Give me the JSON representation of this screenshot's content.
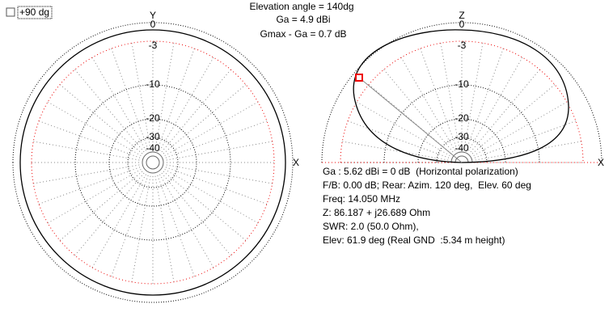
{
  "checkbox": {
    "label": "+90 dg"
  },
  "header": {
    "lines": [
      "Elevation angle = 140dg",
      "Ga = 4.9 dBi",
      "Gmax - Ga = 0.7 dB"
    ]
  },
  "left_plot": {
    "axis_labels": {
      "vertical": "Y",
      "horizontal": "X"
    },
    "ring_labels": [
      0,
      -3,
      -10,
      -20,
      -30,
      -40
    ]
  },
  "right_plot": {
    "axis_labels": {
      "vertical": "Z",
      "horizontal": "X"
    },
    "ring_labels": [
      0,
      -3,
      -10,
      -20,
      -30,
      -40
    ]
  },
  "info": {
    "lines": [
      "Ga : 5.62 dBi = 0 dB  (Horizontal polarization)",
      "F/B: 0.00 dB; Rear: Azim. 120 deg,  Elev. 60 deg",
      "Freq: 14.050 MHz",
      "Z: 86.187 + j26.689 Ohm",
      "SWR: 2.0 (50.0 Ohm),",
      "Elev: 61.9 deg (Real GND  :5.34 m height)"
    ]
  }
}
